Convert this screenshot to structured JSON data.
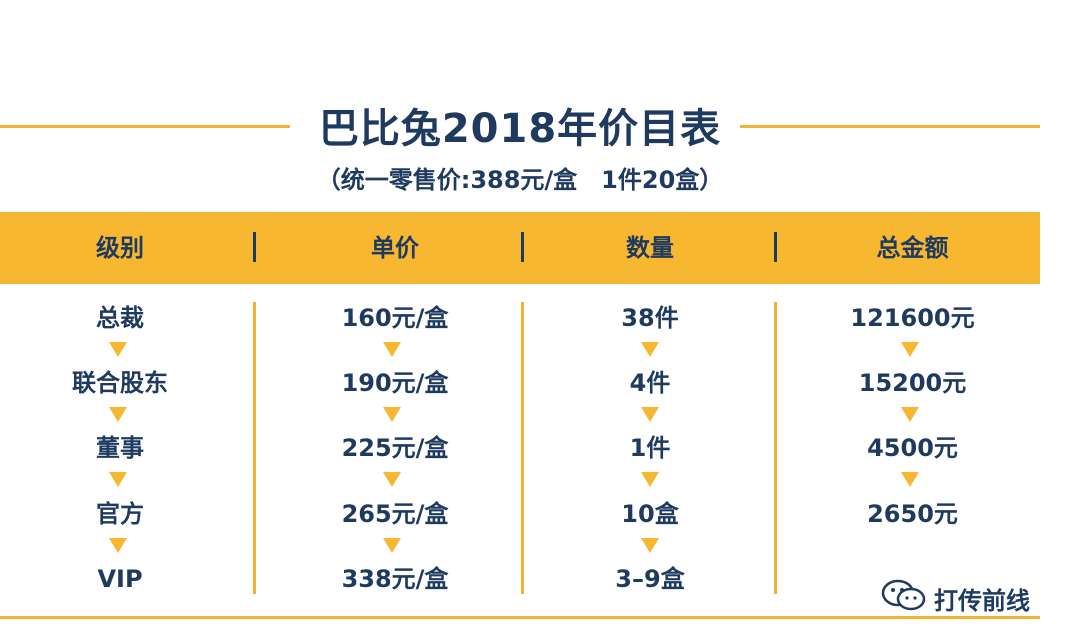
{
  "title": "巴比兔2018年价目表",
  "subtitle": "（统一零售价:388元/盒　1件20盒）",
  "accent_color": "#f7b731",
  "text_color": "#1f3a5f",
  "headers": [
    "级别",
    "单价",
    "数量",
    "总金额"
  ],
  "rows": [
    {
      "level": "总裁",
      "price": "160元/盒",
      "qty": "38件",
      "total": "121600元"
    },
    {
      "level": "联合股东",
      "price": "190元/盒",
      "qty": "4件",
      "total": "15200元"
    },
    {
      "level": "董事",
      "price": "225元/盒",
      "qty": "1件",
      "total": "4500元"
    },
    {
      "level": "官方",
      "price": "265元/盒",
      "qty": "10盒",
      "total": "2650元"
    },
    {
      "level": "VIP",
      "price": "338元/盒",
      "qty": "3–9盒",
      "total": ""
    }
  ],
  "watermark": {
    "icon": "wechat-icon",
    "text": "打传前线"
  }
}
